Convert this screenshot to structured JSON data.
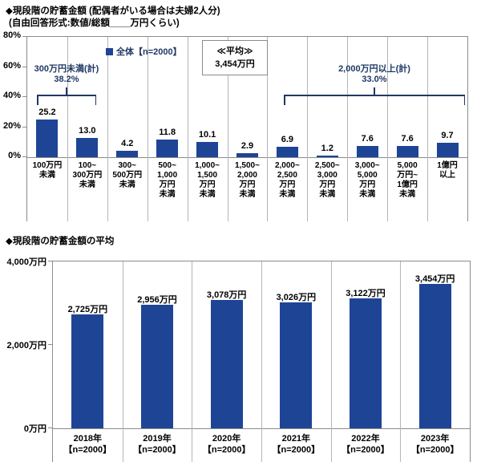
{
  "colors": {
    "bar": "#1e4496",
    "navy": "#1f3864",
    "text": "#000000",
    "border": "#8c8c8c",
    "separator": "#b5b5b5",
    "background": "#ffffff"
  },
  "header": {
    "title": "◆現段階の貯蓄金額 (配偶者がいる場合は夫婦2人分)",
    "subtitle": "(自由回答形式:数値/総額____万円くらい)"
  },
  "section2": {
    "title": "◆現段階の貯蓄金額の平均"
  },
  "chart_data": [
    {
      "type": "bar",
      "title": "現段階の貯蓄金額 (配偶者がいる場合は夫婦2人分)",
      "legend": {
        "marker": "■",
        "label": "全体【n=2000】",
        "position": "top-left-of-plot"
      },
      "average_box": {
        "line1": "≪平均≫",
        "line2": "3,454万円"
      },
      "annotations": [
        {
          "label": "300万円未満(計)",
          "value": "38.2%",
          "from_category": 0,
          "to_category": 1
        },
        {
          "label": "2,000万円以上(計)",
          "value": "33.0%",
          "from_category": 6,
          "to_category": 10
        }
      ],
      "categories": [
        "100万円\n未満",
        "100~\n300万円\n未満",
        "300~\n500万円\n未満",
        "500~\n1,000\n万円\n未満",
        "1,000~\n1,500\n万円\n未満",
        "1,500~\n2,000\n万円\n未満",
        "2,000~\n2,500\n万円\n未満",
        "2,500~\n3,000\n万円\n未満",
        "3,000~\n5,000\n万円\n未満",
        "5,000\n万円~\n1億円\n未満",
        "1億円\n以上"
      ],
      "values": [
        25.2,
        13.0,
        4.2,
        11.8,
        10.1,
        2.9,
        6.9,
        1.2,
        7.6,
        7.6,
        9.7
      ],
      "value_labels": [
        "25.2",
        "13.0",
        "4.2",
        "11.8",
        "10.1",
        "2.9",
        "6.9",
        "1.2",
        "7.6",
        "7.6",
        "9.7"
      ],
      "unit": "%",
      "ylim": [
        0,
        80
      ],
      "yticks": [
        {
          "v": 0,
          "label": "0%"
        },
        {
          "v": 20,
          "label": "20%"
        },
        {
          "v": 40,
          "label": "40%"
        },
        {
          "v": 60,
          "label": "60%"
        },
        {
          "v": 80,
          "label": "80%"
        }
      ],
      "grid": "vertical-category-separators"
    },
    {
      "type": "bar",
      "title": "現段階の貯蓄金額の平均",
      "categories": [
        "2018年\n【n=2000】",
        "2019年\n【n=2000】",
        "2020年\n【n=2000】",
        "2021年\n【n=2000】",
        "2022年\n【n=2000】",
        "2023年\n【n=2000】"
      ],
      "values": [
        2725,
        2956,
        3078,
        3026,
        3122,
        3454
      ],
      "value_labels": [
        "2,725万円",
        "2,956万円",
        "3,078万円",
        "3,026万円",
        "3,122万円",
        "3,454万円"
      ],
      "unit": "万円",
      "ylim": [
        0,
        4000
      ],
      "yticks": [
        {
          "v": 0,
          "label": "0万円"
        },
        {
          "v": 2000,
          "label": "2,000万円"
        },
        {
          "v": 4000,
          "label": "4,000万円"
        }
      ],
      "grid": "vertical-category-separators"
    }
  ]
}
